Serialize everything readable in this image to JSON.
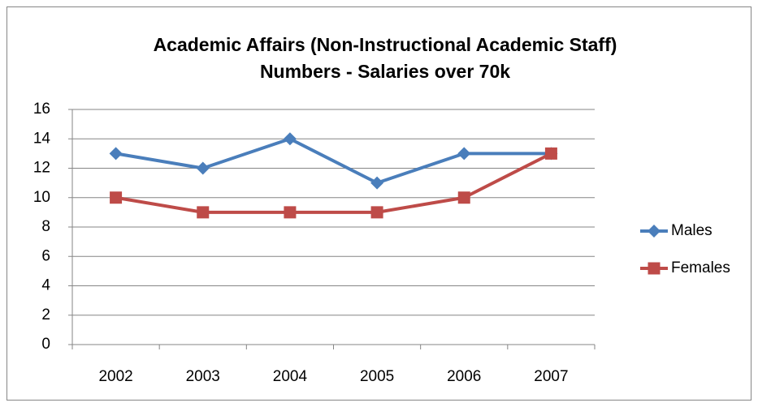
{
  "chart_data": {
    "type": "line",
    "title": "Academic Affairs (Non-Instructional Academic Staff)\nNumbers - Salaries over 70k",
    "categories": [
      "2002",
      "2003",
      "2004",
      "2005",
      "2006",
      "2007"
    ],
    "series": [
      {
        "name": "Males",
        "color": "#4a7ebb",
        "marker": "diamond",
        "values": [
          13,
          12,
          14,
          11,
          13,
          13
        ]
      },
      {
        "name": "Females",
        "color": "#be4b48",
        "marker": "square",
        "values": [
          10,
          9,
          9,
          9,
          10,
          13
        ]
      }
    ],
    "ylim": [
      0,
      16
    ],
    "yticks": [
      0,
      2,
      4,
      6,
      8,
      10,
      12,
      14,
      16
    ],
    "grid": true,
    "legend": "right"
  }
}
